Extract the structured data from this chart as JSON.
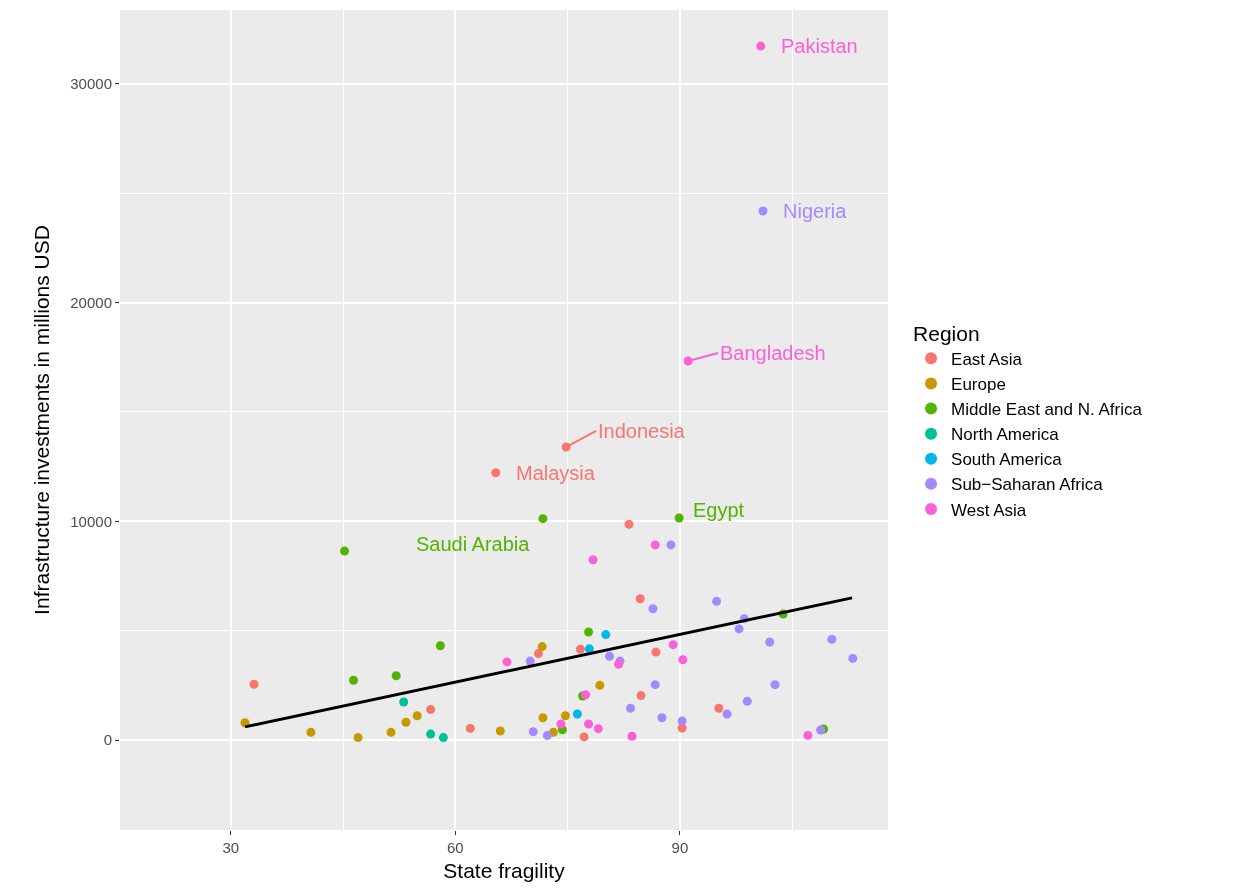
{
  "chart_data": {
    "type": "scatter",
    "xlabel": "State fragility",
    "ylabel": "Infrastructure investments in millions USD",
    "legend_title": "Region",
    "xlim": [
      15.2,
      117.8
    ],
    "xticks": [
      30,
      60,
      90
    ],
    "ylim": [
      -4115,
      33380
    ],
    "yticks": [
      0,
      10000,
      20000,
      30000
    ],
    "grid": true,
    "legend": "right",
    "marker": "circle",
    "series": [
      {
        "name": "East Asia",
        "color": "#F8766D",
        "x": [
          33.1,
          56.7,
          62.0,
          71.1,
          76.7,
          84.7,
          86.8,
          84.8,
          77.2,
          90.3,
          95.2,
          74.8,
          65.4,
          83.2
        ],
        "values": [
          2550,
          1390,
          530,
          3950,
          4150,
          6460,
          4020,
          2030,
          140,
          550,
          1450,
          13400,
          12220,
          9860
        ]
      },
      {
        "name": "Europe",
        "color": "#C49A00",
        "x": [
          31.9,
          40.7,
          47.0,
          51.4,
          53.4,
          54.9,
          71.6,
          79.3,
          71.7,
          74.7,
          66.0,
          73.1
        ],
        "values": [
          790,
          350,
          110,
          350,
          810,
          1110,
          4270,
          2500,
          1020,
          1110,
          410,
          350
        ]
      },
      {
        "name": "Middle East and N. Africa",
        "color": "#53B400",
        "x": [
          45.2,
          58.0,
          46.4,
          52.1,
          77.8,
          77.0,
          74.3,
          103.8,
          109.2,
          71.7,
          89.9
        ],
        "values": [
          8640,
          4310,
          2730,
          2940,
          4940,
          2010,
          470,
          5760,
          500,
          10120,
          10150
        ]
      },
      {
        "name": "North America",
        "color": "#00C094",
        "x": [
          53.1,
          56.7,
          58.4
        ],
        "values": [
          1740,
          270,
          110
        ]
      },
      {
        "name": "South America",
        "color": "#00B6EB",
        "x": [
          80.1,
          77.9,
          76.3
        ],
        "values": [
          4820,
          4170,
          1190
        ]
      },
      {
        "name": "Sub−Saharan Africa",
        "color": "#A58AFF",
        "x": [
          88.8,
          86.4,
          70.0,
          80.6,
          82.0,
          86.7,
          83.4,
          87.6,
          70.4,
          72.3,
          90.3,
          94.9,
          98.6,
          97.9,
          102.0,
          110.3,
          113.1,
          102.7,
          99.0,
          96.3,
          108.8,
          101.1
        ],
        "values": [
          8920,
          6000,
          3610,
          3830,
          3610,
          2530,
          1450,
          1020,
          380,
          210,
          870,
          6340,
          5550,
          5080,
          4480,
          4600,
          3730,
          2530,
          1770,
          1190,
          460,
          24190
        ]
      },
      {
        "name": "West Asia",
        "color": "#FB61D7",
        "x": [
          86.7,
          78.4,
          66.9,
          81.8,
          89.1,
          77.4,
          77.8,
          79.1,
          74.1,
          83.6,
          90.4,
          107.1,
          100.8,
          91.1
        ],
        "values": [
          8920,
          8240,
          3570,
          3460,
          4360,
          2070,
          730,
          520,
          730,
          170,
          3670,
          210,
          31730,
          17330
        ]
      },
      {
        "type": "line",
        "color": "#000000",
        "x": [
          31.9,
          113.0
        ],
        "values": [
          600,
          6500
        ],
        "marker": "none"
      }
    ],
    "annotations": [
      {
        "text": "Pakistan",
        "x": 100.8,
        "y": 31730
      },
      {
        "text": "Nigeria",
        "x": 101.1,
        "y": 24190
      },
      {
        "text": "Bangladesh",
        "x": 91.1,
        "y": 17330
      },
      {
        "text": "Indonesia",
        "x": 74.8,
        "y": 13400
      },
      {
        "text": "Malaysia",
        "x": 65.4,
        "y": 12220
      },
      {
        "text": "Egypt",
        "x": 89.9,
        "y": 10150
      },
      {
        "text": "Saudi Arabia",
        "x": 71.7,
        "y": 10120
      }
    ]
  }
}
